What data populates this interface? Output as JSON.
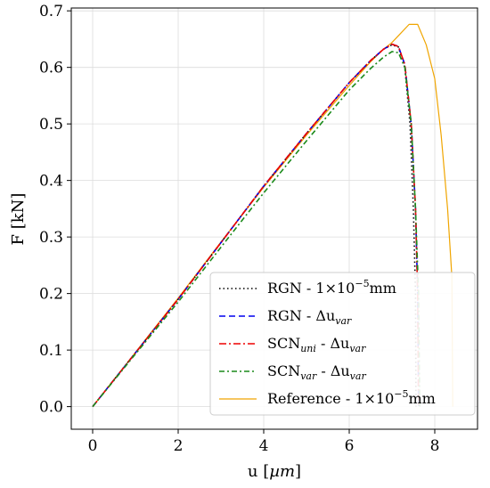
{
  "chart_data": {
    "type": "line",
    "title": "",
    "xlabel": "u [µm]",
    "ylabel": "F [kN]",
    "xlim": [
      -0.5,
      9.0
    ],
    "ylim": [
      -0.04,
      0.705
    ],
    "grid": true,
    "legend_position": "bottom-right",
    "x_ticks": [
      0,
      2,
      4,
      6,
      8
    ],
    "y_ticks": [
      0.0,
      0.1,
      0.2,
      0.3,
      0.4,
      0.5,
      0.6,
      0.7
    ],
    "x_tick_labels": [
      "0",
      "2",
      "4",
      "6",
      "8"
    ],
    "y_tick_labels": [
      "0.0",
      "0.1",
      "0.2",
      "0.3",
      "0.4",
      "0.5",
      "0.6",
      "0.7"
    ],
    "series": [
      {
        "name": "RGN - 1×10⁻⁵mm",
        "name_parts": [
          "RGN - 1×10",
          "−5",
          "mm"
        ],
        "color": "#000000",
        "dash": "1.5,3",
        "x": [
          0,
          1,
          2,
          3,
          4,
          5,
          6,
          6.5,
          6.8,
          7.0,
          7.15,
          7.3,
          7.42,
          7.5,
          7.55,
          7.56
        ],
        "y": [
          0,
          0.095,
          0.19,
          0.29,
          0.39,
          0.483,
          0.573,
          0.612,
          0.632,
          0.64,
          0.636,
          0.6,
          0.5,
          0.35,
          0.2,
          0.0
        ]
      },
      {
        "name": "RGN - Δu_var",
        "name_parts": [
          "RGN - Δu",
          "var",
          ""
        ],
        "color": "#0000ee",
        "dash": "7,4",
        "x": [
          0,
          1,
          2,
          3,
          4,
          5,
          6,
          6.5,
          6.8,
          7.0,
          7.15,
          7.3,
          7.45,
          7.55,
          7.6,
          7.62
        ],
        "y": [
          0,
          0.095,
          0.19,
          0.29,
          0.39,
          0.483,
          0.573,
          0.612,
          0.632,
          0.641,
          0.637,
          0.605,
          0.5,
          0.35,
          0.2,
          0.0
        ]
      },
      {
        "name": "SCN_uni - Δu_var",
        "name_parts": [
          "SCN",
          "uni",
          " - Δu",
          "var"
        ],
        "color": "#ee0000",
        "dash": "8,3,2,3",
        "x": [
          0,
          1,
          2,
          3,
          4,
          5,
          6,
          6.5,
          6.8,
          7.0,
          7.15,
          7.3,
          7.45,
          7.55,
          7.6,
          7.62
        ],
        "y": [
          0,
          0.095,
          0.19,
          0.29,
          0.39,
          0.483,
          0.573,
          0.612,
          0.632,
          0.641,
          0.637,
          0.605,
          0.5,
          0.35,
          0.2,
          0.0
        ]
      },
      {
        "name": "SCN_var - Δu_var",
        "name_parts": [
          "SCN",
          "var",
          " - Δu",
          "var"
        ],
        "color": "#1a8a1a",
        "dash": "6,3,2,3",
        "x": [
          0,
          1,
          2,
          3,
          4,
          5,
          6,
          6.5,
          6.8,
          7.0,
          7.15,
          7.3,
          7.45,
          7.55,
          7.62,
          7.65
        ],
        "y": [
          0,
          0.093,
          0.185,
          0.282,
          0.378,
          0.47,
          0.56,
          0.598,
          0.618,
          0.628,
          0.626,
          0.6,
          0.5,
          0.35,
          0.2,
          0.0
        ]
      },
      {
        "name": "Reference - 1×10⁻⁵mm",
        "name_parts": [
          "Reference - 1×10",
          "−5",
          "mm"
        ],
        "color": "#f0a500",
        "dash": "",
        "x": [
          0,
          1,
          2,
          3,
          4,
          5,
          6,
          6.5,
          6.8,
          7.0,
          7.2,
          7.4,
          7.6,
          7.8,
          8.0,
          8.15,
          8.3,
          8.4,
          8.42
        ],
        "y": [
          0,
          0.096,
          0.192,
          0.291,
          0.388,
          0.48,
          0.568,
          0.61,
          0.632,
          0.644,
          0.66,
          0.676,
          0.676,
          0.64,
          0.58,
          0.48,
          0.35,
          0.23,
          0.0
        ]
      }
    ]
  }
}
